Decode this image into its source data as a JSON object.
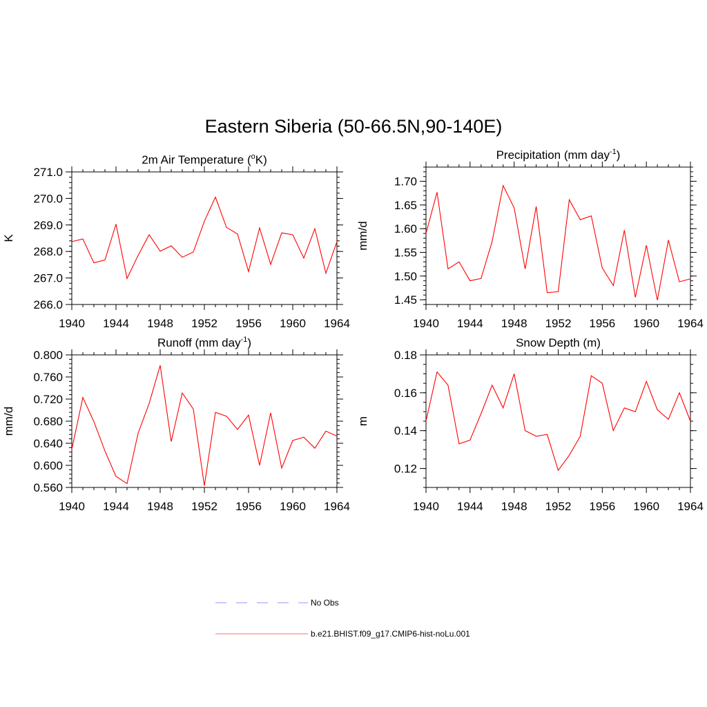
{
  "page_title": "Eastern Siberia (50-66.5N,90-140E)",
  "legend": [
    {
      "label": "No Obs",
      "color": "#aaaaff",
      "style": "dashed"
    },
    {
      "label": "b.e21.BHIST.f09_g17.CMIP6-hist-noLu.001",
      "color": "#ff8888",
      "style": "solid"
    }
  ],
  "series_color": "#ff0000",
  "chart_data": [
    {
      "type": "line",
      "title_main": "2m Air Temperature (",
      "title_sup": "o",
      "title_end": "K)",
      "ylabel": "K",
      "xlim": [
        1940,
        1964
      ],
      "ylim": [
        266.0,
        271.0
      ],
      "xticks": [
        1940,
        1944,
        1948,
        1952,
        1956,
        1960,
        1964
      ],
      "yticks": [
        266.0,
        267.0,
        268.0,
        269.0,
        270.0,
        271.0
      ],
      "ytick_labels": [
        "266.0",
        "267.0",
        "268.0",
        "269.0",
        "270.0",
        "271.0"
      ],
      "yminor_step": 0.2,
      "x": [
        1940,
        1941,
        1942,
        1943,
        1944,
        1945,
        1946,
        1947,
        1948,
        1949,
        1950,
        1951,
        1952,
        1953,
        1954,
        1955,
        1956,
        1957,
        1958,
        1959,
        1960,
        1961,
        1962,
        1963,
        1964
      ],
      "values": [
        268.37,
        268.47,
        267.57,
        267.68,
        269.03,
        266.98,
        267.85,
        268.63,
        268.01,
        268.21,
        267.78,
        267.98,
        269.14,
        270.05,
        268.91,
        268.66,
        267.24,
        268.89,
        267.51,
        268.7,
        268.63,
        267.75,
        268.86,
        267.18,
        268.37
      ]
    },
    {
      "type": "line",
      "title_main": "Precipitation (mm day",
      "title_sup": "-1",
      "title_end": ")",
      "ylabel": "mm/d",
      "xlim": [
        1940,
        1964
      ],
      "ylim": [
        1.44,
        1.73
      ],
      "xticks": [
        1940,
        1944,
        1948,
        1952,
        1956,
        1960,
        1964
      ],
      "yticks": [
        1.45,
        1.5,
        1.55,
        1.6,
        1.65,
        1.7
      ],
      "ytick_labels": [
        "1.45",
        "1.50",
        "1.55",
        "1.60",
        "1.65",
        "1.70"
      ],
      "yminor_step": 0.01,
      "x": [
        1940,
        1941,
        1942,
        1943,
        1944,
        1945,
        1946,
        1947,
        1948,
        1949,
        1950,
        1951,
        1952,
        1953,
        1954,
        1955,
        1956,
        1957,
        1958,
        1959,
        1960,
        1961,
        1962,
        1963,
        1964
      ],
      "values": [
        1.59,
        1.677,
        1.515,
        1.53,
        1.49,
        1.495,
        1.573,
        1.691,
        1.644,
        1.515,
        1.647,
        1.465,
        1.467,
        1.661,
        1.619,
        1.627,
        1.517,
        1.48,
        1.597,
        1.455,
        1.565,
        1.449,
        1.576,
        1.488,
        1.494
      ]
    },
    {
      "type": "line",
      "title_main": "Runoff (mm day",
      "title_sup": "-1",
      "title_end": ")",
      "ylabel": "mm/d",
      "xlim": [
        1940,
        1964
      ],
      "ylim": [
        0.56,
        0.8
      ],
      "xticks": [
        1940,
        1944,
        1948,
        1952,
        1956,
        1960,
        1964
      ],
      "yticks": [
        0.56,
        0.6,
        0.64,
        0.68,
        0.72,
        0.76,
        0.8
      ],
      "ytick_labels": [
        "0.560",
        "0.600",
        "0.640",
        "0.680",
        "0.720",
        "0.760",
        "0.800"
      ],
      "yminor_step": 0.008,
      "x": [
        1940,
        1941,
        1942,
        1943,
        1944,
        1945,
        1946,
        1947,
        1948,
        1949,
        1950,
        1951,
        1952,
        1953,
        1954,
        1955,
        1956,
        1957,
        1958,
        1959,
        1960,
        1961,
        1962,
        1963,
        1964
      ],
      "values": [
        0.629,
        0.723,
        0.679,
        0.626,
        0.58,
        0.567,
        0.658,
        0.712,
        0.781,
        0.643,
        0.731,
        0.702,
        0.563,
        0.696,
        0.689,
        0.665,
        0.691,
        0.6,
        0.695,
        0.595,
        0.645,
        0.651,
        0.631,
        0.662,
        0.653
      ]
    },
    {
      "type": "line",
      "title_main": "Snow Depth (m)",
      "title_sup": "",
      "title_end": "",
      "ylabel": "m",
      "xlim": [
        1940,
        1964
      ],
      "ylim": [
        0.11,
        0.18
      ],
      "xticks": [
        1940,
        1944,
        1948,
        1952,
        1956,
        1960,
        1964
      ],
      "yticks": [
        0.12,
        0.14,
        0.16,
        0.18
      ],
      "ytick_labels": [
        "0.12",
        "0.14",
        "0.16",
        "0.18"
      ],
      "yminor_step": 0.005,
      "x": [
        1940,
        1941,
        1942,
        1943,
        1944,
        1945,
        1946,
        1947,
        1948,
        1949,
        1950,
        1951,
        1952,
        1953,
        1954,
        1955,
        1956,
        1957,
        1958,
        1959,
        1960,
        1961,
        1962,
        1963,
        1964
      ],
      "values": [
        0.145,
        0.171,
        0.164,
        0.133,
        0.135,
        0.149,
        0.164,
        0.152,
        0.17,
        0.14,
        0.137,
        0.138,
        0.119,
        0.127,
        0.137,
        0.169,
        0.165,
        0.14,
        0.152,
        0.15,
        0.166,
        0.151,
        0.146,
        0.16,
        0.145
      ]
    }
  ]
}
